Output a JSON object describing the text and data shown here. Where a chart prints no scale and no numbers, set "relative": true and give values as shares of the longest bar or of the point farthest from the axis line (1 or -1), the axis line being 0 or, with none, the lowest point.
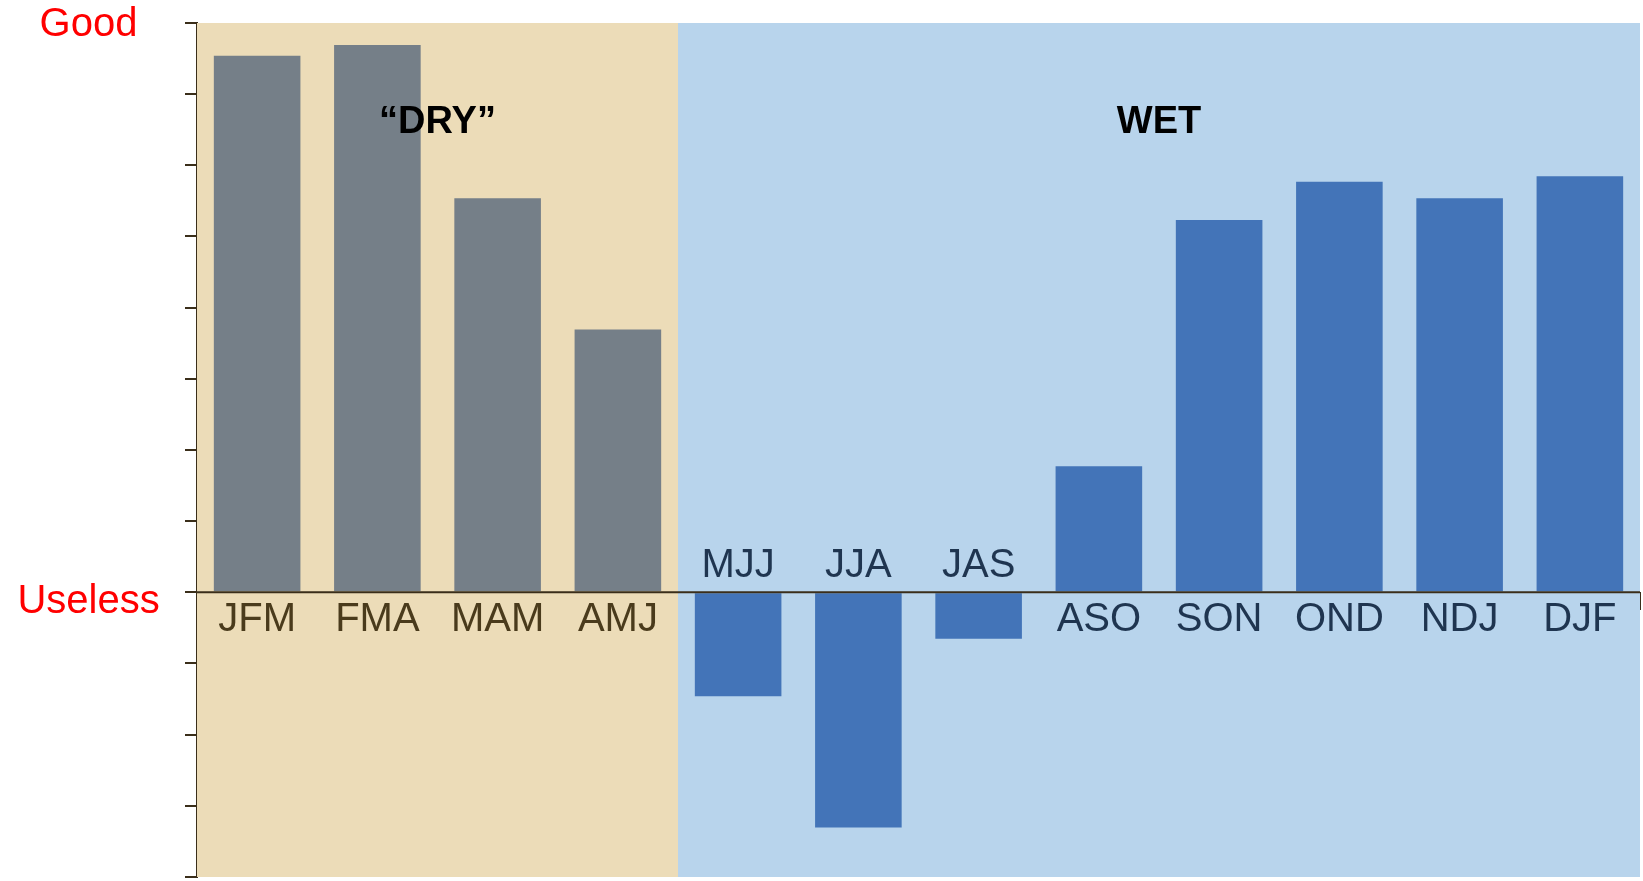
{
  "chart_data": {
    "type": "bar",
    "relative": true,
    "categories": [
      "JFM",
      "FMA",
      "MAM",
      "AMJ",
      "MJJ",
      "JJA",
      "JAS",
      "ASO",
      "SON",
      "OND",
      "NDJ",
      "DJF"
    ],
    "values": [
      0.98,
      1,
      0.72,
      0.48,
      -0.19,
      -0.43,
      -0.085,
      0.23,
      0.68,
      0.75,
      0.72,
      0.76
    ],
    "colors": [
      "#757f88",
      "#757f88",
      "#757f88",
      "#757f88",
      "#4374b8",
      "#4374b8",
      "#4374b8",
      "#4374b8",
      "#4374b8",
      "#4374b8",
      "#4374b8",
      "#4374b8"
    ],
    "bands": [
      {
        "axis": "x",
        "from": "JFM",
        "to": "AMJ",
        "label": "“DRY”",
        "color": "#ecdcb8"
      },
      {
        "axis": "x",
        "from": "MJJ",
        "to": "DJF",
        "label": "WET",
        "color": "#b8d4ec"
      }
    ],
    "annotations": [
      "Good",
      "Useless"
    ],
    "legend": false
  }
}
